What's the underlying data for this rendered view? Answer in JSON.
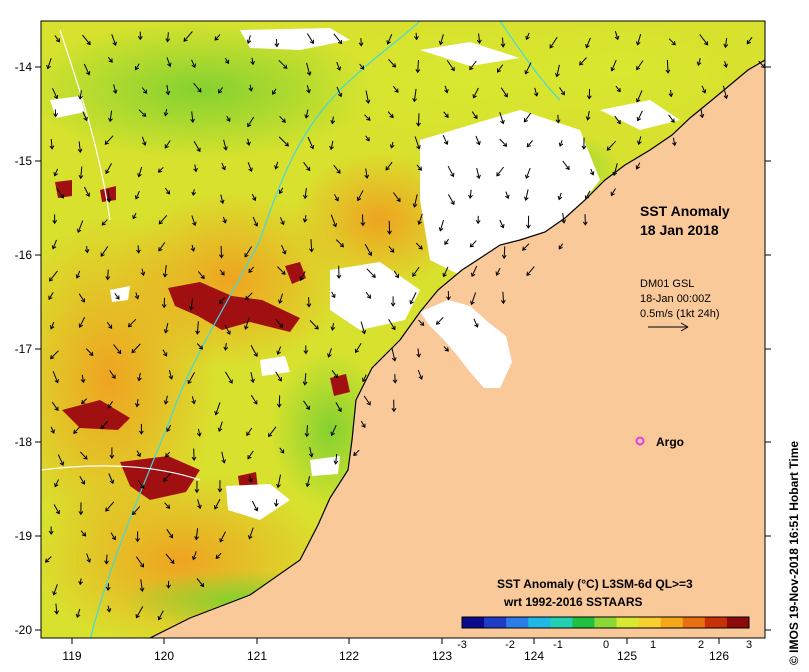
{
  "map": {
    "title_line1": "SST Anomaly",
    "title_line2": "18 Jan 2018",
    "current_info": {
      "line1": "DM01 GSL",
      "line2": "18-Jan 00:00Z",
      "line3": "0.5m/s (1kt 24h)"
    },
    "argo_label": "Argo",
    "argo_color": "#e040e0",
    "colorbar": {
      "title_line1": "SST Anomaly (°C) L3SM-6d QL>=3",
      "title_line2": "wrt 1992-2016 SSTAARS",
      "tick_labels": [
        "-3",
        "-2",
        "-1",
        "0",
        "1",
        "2",
        "3"
      ],
      "colors": [
        "#0a0a8c",
        "#1e3cc8",
        "#2a7de6",
        "#20b8e6",
        "#23d0b4",
        "#20c040",
        "#8cd838",
        "#d8ea30",
        "#f7d030",
        "#f5a818",
        "#e87010",
        "#c83008",
        "#8c0a0a"
      ]
    },
    "x_tick_labels": [
      "119",
      "120",
      "121",
      "122",
      "123",
      "124",
      "125",
      "126"
    ],
    "y_tick_labels": [
      "-14",
      "-15",
      "-16",
      "-17",
      "-18",
      "-19",
      "-20"
    ],
    "credit": "© IMOS 19-Nov-2018 16:51 Hobart Time",
    "land_color": "#f9c99a",
    "ocean_base_color": "#e6b84a"
  }
}
